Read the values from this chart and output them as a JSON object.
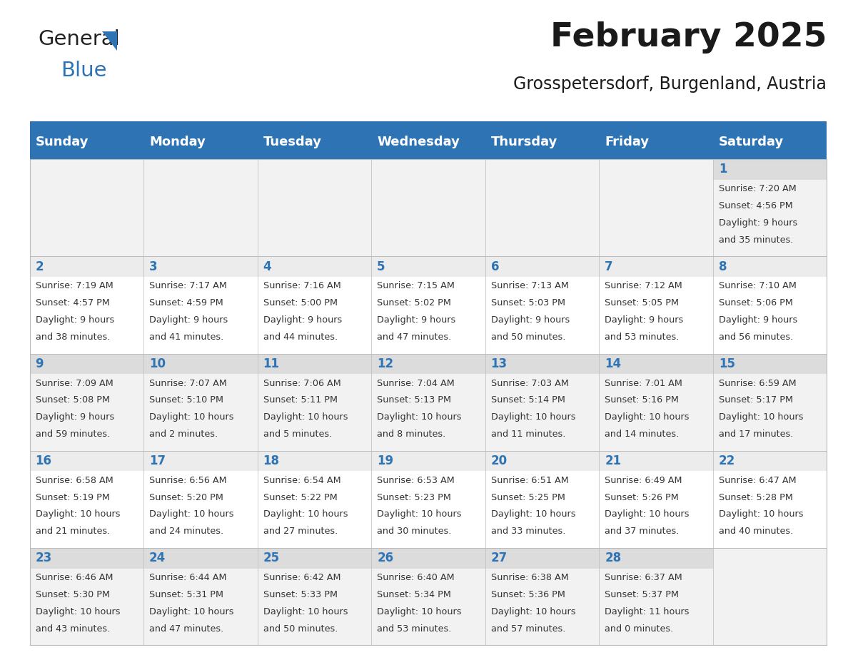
{
  "title": "February 2025",
  "subtitle": "Grosspetersdorf, Burgenland, Austria",
  "days_of_week": [
    "Sunday",
    "Monday",
    "Tuesday",
    "Wednesday",
    "Thursday",
    "Friday",
    "Saturday"
  ],
  "header_bg": "#2E74B5",
  "header_text": "#FFFFFF",
  "odd_row_bg": "#F2F2F2",
  "even_row_bg": "#FFFFFF",
  "cell_text_color": "#333333",
  "day_num_color": "#2E74B5",
  "title_color": "#1a1a1a",
  "subtitle_color": "#1a1a1a",
  "logo_general_color": "#222222",
  "logo_blue_color": "#2E74B5",
  "separator_color": "#2E74B5",
  "grid_color": "#BBBBBB",
  "calendar_data": [
    [
      null,
      null,
      null,
      null,
      null,
      null,
      {
        "day": 1,
        "sunrise": "7:20 AM",
        "sunset": "4:56 PM",
        "daylight": "9 hours and 35 minutes."
      }
    ],
    [
      {
        "day": 2,
        "sunrise": "7:19 AM",
        "sunset": "4:57 PM",
        "daylight": "9 hours and 38 minutes."
      },
      {
        "day": 3,
        "sunrise": "7:17 AM",
        "sunset": "4:59 PM",
        "daylight": "9 hours and 41 minutes."
      },
      {
        "day": 4,
        "sunrise": "7:16 AM",
        "sunset": "5:00 PM",
        "daylight": "9 hours and 44 minutes."
      },
      {
        "day": 5,
        "sunrise": "7:15 AM",
        "sunset": "5:02 PM",
        "daylight": "9 hours and 47 minutes."
      },
      {
        "day": 6,
        "sunrise": "7:13 AM",
        "sunset": "5:03 PM",
        "daylight": "9 hours and 50 minutes."
      },
      {
        "day": 7,
        "sunrise": "7:12 AM",
        "sunset": "5:05 PM",
        "daylight": "9 hours and 53 minutes."
      },
      {
        "day": 8,
        "sunrise": "7:10 AM",
        "sunset": "5:06 PM",
        "daylight": "9 hours and 56 minutes."
      }
    ],
    [
      {
        "day": 9,
        "sunrise": "7:09 AM",
        "sunset": "5:08 PM",
        "daylight": "9 hours and 59 minutes."
      },
      {
        "day": 10,
        "sunrise": "7:07 AM",
        "sunset": "5:10 PM",
        "daylight": "10 hours and 2 minutes."
      },
      {
        "day": 11,
        "sunrise": "7:06 AM",
        "sunset": "5:11 PM",
        "daylight": "10 hours and 5 minutes."
      },
      {
        "day": 12,
        "sunrise": "7:04 AM",
        "sunset": "5:13 PM",
        "daylight": "10 hours and 8 minutes."
      },
      {
        "day": 13,
        "sunrise": "7:03 AM",
        "sunset": "5:14 PM",
        "daylight": "10 hours and 11 minutes."
      },
      {
        "day": 14,
        "sunrise": "7:01 AM",
        "sunset": "5:16 PM",
        "daylight": "10 hours and 14 minutes."
      },
      {
        "day": 15,
        "sunrise": "6:59 AM",
        "sunset": "5:17 PM",
        "daylight": "10 hours and 17 minutes."
      }
    ],
    [
      {
        "day": 16,
        "sunrise": "6:58 AM",
        "sunset": "5:19 PM",
        "daylight": "10 hours and 21 minutes."
      },
      {
        "day": 17,
        "sunrise": "6:56 AM",
        "sunset": "5:20 PM",
        "daylight": "10 hours and 24 minutes."
      },
      {
        "day": 18,
        "sunrise": "6:54 AM",
        "sunset": "5:22 PM",
        "daylight": "10 hours and 27 minutes."
      },
      {
        "day": 19,
        "sunrise": "6:53 AM",
        "sunset": "5:23 PM",
        "daylight": "10 hours and 30 minutes."
      },
      {
        "day": 20,
        "sunrise": "6:51 AM",
        "sunset": "5:25 PM",
        "daylight": "10 hours and 33 minutes."
      },
      {
        "day": 21,
        "sunrise": "6:49 AM",
        "sunset": "5:26 PM",
        "daylight": "10 hours and 37 minutes."
      },
      {
        "day": 22,
        "sunrise": "6:47 AM",
        "sunset": "5:28 PM",
        "daylight": "10 hours and 40 minutes."
      }
    ],
    [
      {
        "day": 23,
        "sunrise": "6:46 AM",
        "sunset": "5:30 PM",
        "daylight": "10 hours and 43 minutes."
      },
      {
        "day": 24,
        "sunrise": "6:44 AM",
        "sunset": "5:31 PM",
        "daylight": "10 hours and 47 minutes."
      },
      {
        "day": 25,
        "sunrise": "6:42 AM",
        "sunset": "5:33 PM",
        "daylight": "10 hours and 50 minutes."
      },
      {
        "day": 26,
        "sunrise": "6:40 AM",
        "sunset": "5:34 PM",
        "daylight": "10 hours and 53 minutes."
      },
      {
        "day": 27,
        "sunrise": "6:38 AM",
        "sunset": "5:36 PM",
        "daylight": "10 hours and 57 minutes."
      },
      {
        "day": 28,
        "sunrise": "6:37 AM",
        "sunset": "5:37 PM",
        "daylight": "11 hours and 0 minutes."
      },
      null
    ]
  ]
}
